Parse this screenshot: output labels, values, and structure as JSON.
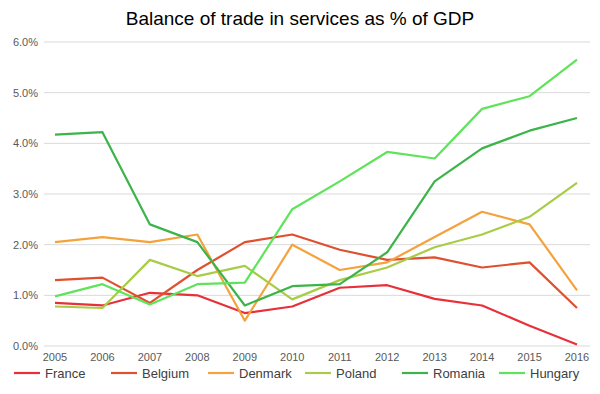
{
  "chart_data": {
    "type": "line",
    "title": "Balance of trade in services as % of GDP",
    "categories": [
      "2005",
      "2006",
      "2007",
      "2008",
      "2009",
      "2010",
      "2011",
      "2012",
      "2013",
      "2014",
      "2015",
      "2016"
    ],
    "series": [
      {
        "name": "France",
        "color": "#e8303a",
        "values": [
          0.85,
          0.8,
          1.05,
          1.0,
          0.65,
          0.78,
          1.15,
          1.2,
          0.93,
          0.8,
          0.4,
          0.03
        ]
      },
      {
        "name": "Belgium",
        "color": "#e0502e",
        "values": [
          1.3,
          1.35,
          0.85,
          1.5,
          2.05,
          2.2,
          1.9,
          1.7,
          1.75,
          1.55,
          1.65,
          0.75
        ]
      },
      {
        "name": "Denmark",
        "color": "#f4a23c",
        "values": [
          2.05,
          2.15,
          2.05,
          2.2,
          0.5,
          2.0,
          1.5,
          1.65,
          2.15,
          2.65,
          2.4,
          1.1
        ]
      },
      {
        "name": "Poland",
        "color": "#a8cc45",
        "values": [
          0.78,
          0.75,
          1.7,
          1.38,
          1.58,
          0.92,
          1.3,
          1.55,
          1.95,
          2.2,
          2.55,
          3.22
        ]
      },
      {
        "name": "Romania",
        "color": "#3cb44a",
        "values": [
          4.17,
          4.22,
          2.4,
          2.05,
          0.8,
          1.18,
          1.22,
          1.85,
          3.25,
          3.9,
          4.25,
          4.5
        ]
      },
      {
        "name": "Hungary",
        "color": "#5fe35a",
        "values": [
          0.98,
          1.22,
          0.82,
          1.22,
          1.25,
          2.7,
          3.25,
          3.83,
          3.7,
          4.68,
          4.93,
          5.65
        ]
      }
    ],
    "ylim": [
      0,
      6
    ],
    "yticks": [
      {
        "value": 0,
        "label": "0.0%"
      },
      {
        "value": 1,
        "label": "1.0%"
      },
      {
        "value": 2,
        "label": "2.0%"
      },
      {
        "value": 3,
        "label": "3.0%"
      },
      {
        "value": 4,
        "label": "4.0%"
      },
      {
        "value": 5,
        "label": "5.0%"
      },
      {
        "value": 6,
        "label": "6.0%"
      }
    ],
    "grid": true,
    "legend": "bottom"
  }
}
